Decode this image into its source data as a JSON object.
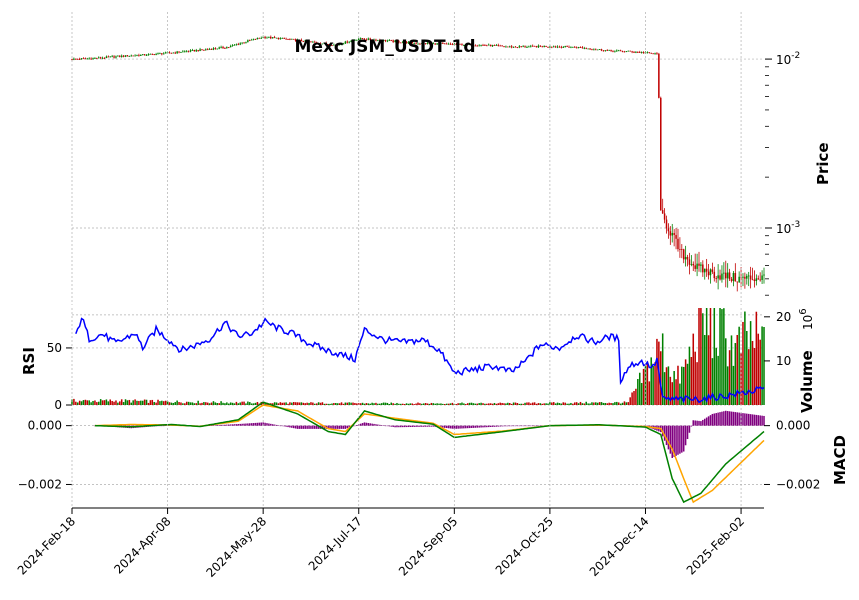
{
  "chart_data": {
    "type": "candlestick",
    "title": "Mexc JSM_USDT 1d",
    "x_ticks": [
      "2024-Feb-18",
      "2024-Apr-08",
      "2024-May-28",
      "2024-Jul-17",
      "2024-Sep-05",
      "2024-Oct-25",
      "2024-Dec-14",
      "2025-Feb-02"
    ],
    "x_range": [
      "2024-02-18",
      "2025-02-14"
    ],
    "colors": {
      "up": "#008000",
      "down": "#c00000",
      "rsi": "#0000ff",
      "macd": "#008000",
      "signal": "#ffa500",
      "hist": "#800080"
    },
    "price_panel": {
      "ylabel": "Price",
      "scale": "log",
      "ylim": [
        0.00035,
        0.019
      ],
      "major_ticks": [
        0.001,
        0.01
      ],
      "major_labels": [
        "10^-3",
        "10^-2"
      ],
      "close_series": [
        [
          "2024-02-18",
          0.00998
        ],
        [
          "2024-03-01",
          0.0101
        ],
        [
          "2024-03-15",
          0.0104
        ],
        [
          "2024-03-28",
          0.0106
        ],
        [
          "2024-04-10",
          0.0109
        ],
        [
          "2024-04-25",
          0.0113
        ],
        [
          "2024-05-10",
          0.0118
        ],
        [
          "2024-05-20",
          0.0128
        ],
        [
          "2024-05-28",
          0.0135
        ],
        [
          "2024-06-10",
          0.0131
        ],
        [
          "2024-06-25",
          0.0125
        ],
        [
          "2024-07-05",
          0.0121
        ],
        [
          "2024-07-17",
          0.0132
        ],
        [
          "2024-07-30",
          0.0129
        ],
        [
          "2024-08-15",
          0.0124
        ],
        [
          "2024-08-28",
          0.0123
        ],
        [
          "2024-09-05",
          0.0122
        ],
        [
          "2024-09-20",
          0.0121
        ],
        [
          "2024-10-05",
          0.0118
        ],
        [
          "2024-10-25",
          0.0119
        ],
        [
          "2024-11-10",
          0.0117
        ],
        [
          "2024-11-25",
          0.0112
        ],
        [
          "2024-12-05",
          0.0111
        ],
        [
          "2024-12-14",
          0.0109
        ],
        [
          "2024-12-20",
          0.0107
        ],
        [
          "2024-12-22",
          0.0012
        ],
        [
          "2024-12-26",
          0.001
        ],
        [
          "2025-01-01",
          0.00072
        ],
        [
          "2025-01-10",
          0.00058
        ],
        [
          "2025-01-20",
          0.00053
        ],
        [
          "2025-02-01",
          0.0005
        ],
        [
          "2025-02-14",
          0.00051
        ]
      ]
    },
    "volume_panel": {
      "ylabel": "Volume",
      "exponent_label": "10^6",
      "ylim": [
        0,
        22
      ],
      "ticks": [
        10,
        20
      ],
      "series": [
        [
          "2024-02-18",
          1.0
        ],
        [
          "2024-03-15",
          1.0
        ],
        [
          "2024-04-10",
          0.8
        ],
        [
          "2024-05-10",
          0.6
        ],
        [
          "2024-06-15",
          0.5
        ],
        [
          "2024-08-01",
          0.4
        ],
        [
          "2024-10-01",
          0.4
        ],
        [
          "2024-12-05",
          0.6
        ],
        [
          "2024-12-22",
          14.0
        ],
        [
          "2024-12-30",
          6.0
        ],
        [
          "2025-01-03",
          8.0
        ],
        [
          "2025-01-08",
          14.0
        ],
        [
          "2025-01-12",
          21.0
        ],
        [
          "2025-01-18",
          18.0
        ],
        [
          "2025-01-24",
          17.0
        ],
        [
          "2025-01-30",
          13.0
        ],
        [
          "2025-02-05",
          16.0
        ],
        [
          "2025-02-12",
          15.0
        ]
      ]
    },
    "rsi_panel": {
      "ylabel": "RSI",
      "ticks": [
        0,
        50
      ],
      "ylim": [
        0,
        85
      ],
      "series": [
        [
          "2024-02-20",
          60
        ],
        [
          "2024-02-23",
          77
        ],
        [
          "2024-02-27",
          58
        ],
        [
          "2024-03-05",
          62
        ],
        [
          "2024-03-12",
          54
        ],
        [
          "2024-03-22",
          63
        ],
        [
          "2024-03-26",
          50
        ],
        [
          "2024-04-02",
          66
        ],
        [
          "2024-04-08",
          58
        ],
        [
          "2024-04-15",
          48
        ],
        [
          "2024-04-22",
          52
        ],
        [
          "2024-04-30",
          58
        ],
        [
          "2024-05-08",
          72
        ],
        [
          "2024-05-15",
          60
        ],
        [
          "2024-05-22",
          63
        ],
        [
          "2024-05-29",
          73
        ],
        [
          "2024-06-05",
          67
        ],
        [
          "2024-06-12",
          63
        ],
        [
          "2024-06-20",
          55
        ],
        [
          "2024-06-30",
          48
        ],
        [
          "2024-07-10",
          43
        ],
        [
          "2024-07-15",
          40
        ],
        [
          "2024-07-20",
          66
        ],
        [
          "2024-07-30",
          57
        ],
        [
          "2024-08-10",
          55
        ],
        [
          "2024-08-20",
          57
        ],
        [
          "2024-08-28",
          48
        ],
        [
          "2024-09-05",
          28
        ],
        [
          "2024-09-15",
          31
        ],
        [
          "2024-09-25",
          34
        ],
        [
          "2024-10-05",
          29
        ],
        [
          "2024-10-12",
          38
        ],
        [
          "2024-10-20",
          53
        ],
        [
          "2024-10-30",
          50
        ],
        [
          "2024-11-08",
          61
        ],
        [
          "2024-11-18",
          55
        ],
        [
          "2024-11-25",
          60
        ],
        [
          "2024-11-30",
          58
        ],
        [
          "2024-12-01",
          22
        ],
        [
          "2024-12-06",
          35
        ],
        [
          "2024-12-12",
          38
        ],
        [
          "2024-12-18",
          33
        ],
        [
          "2024-12-20",
          40
        ],
        [
          "2024-12-23",
          5
        ],
        [
          "2025-01-10",
          5
        ],
        [
          "2025-01-25",
          8
        ],
        [
          "2025-02-14",
          14
        ]
      ]
    },
    "macd_panel": {
      "ylabel": "MACD",
      "ticks": [
        0.0,
        -0.002
      ],
      "tick_labels": [
        "0.000",
        "−0.002"
      ],
      "ylim": [
        -0.0028,
        0.0006
      ],
      "macd": [
        [
          "2024-03-01",
          0.0
        ],
        [
          "2024-03-20",
          -4e-05
        ],
        [
          "2024-04-10",
          4e-05
        ],
        [
          "2024-04-25",
          -3e-05
        ],
        [
          "2024-05-15",
          0.0002
        ],
        [
          "2024-05-28",
          0.0008
        ],
        [
          "2024-06-15",
          0.0004
        ],
        [
          "2024-07-01",
          -0.0002
        ],
        [
          "2024-07-10",
          -0.0003
        ],
        [
          "2024-07-20",
          0.0005
        ],
        [
          "2024-08-05",
          0.0002
        ],
        [
          "2024-08-25",
          5e-05
        ],
        [
          "2024-09-05",
          -0.0004
        ],
        [
          "2024-10-01",
          -0.0002
        ],
        [
          "2024-10-25",
          0.0
        ],
        [
          "2024-11-20",
          3e-05
        ],
        [
          "2024-12-14",
          -5e-05
        ],
        [
          "2024-12-22",
          -0.0003
        ],
        [
          "2024-12-28",
          -0.0018
        ],
        [
          "2025-01-03",
          -0.0026
        ],
        [
          "2025-01-12",
          -0.0023
        ],
        [
          "2025-01-25",
          -0.0013
        ],
        [
          "2025-02-14",
          -0.0002
        ]
      ],
      "signal": [
        [
          "2024-03-01",
          0.0
        ],
        [
          "2024-03-20",
          4e-05
        ],
        [
          "2024-04-10",
          2e-05
        ],
        [
          "2024-04-25",
          -2e-05
        ],
        [
          "2024-05-15",
          0.00015
        ],
        [
          "2024-05-28",
          0.0007
        ],
        [
          "2024-06-15",
          0.0005
        ],
        [
          "2024-07-01",
          -0.0001
        ],
        [
          "2024-07-10",
          -0.0002
        ],
        [
          "2024-07-20",
          0.0004
        ],
        [
          "2024-08-05",
          0.00025
        ],
        [
          "2024-08-25",
          8e-05
        ],
        [
          "2024-09-05",
          -0.0003
        ],
        [
          "2024-10-01",
          -0.00018
        ],
        [
          "2024-10-25",
          0.0
        ],
        [
          "2024-11-20",
          2e-05
        ],
        [
          "2024-12-14",
          -3e-05
        ],
        [
          "2024-12-22",
          -0.0001
        ],
        [
          "2024-12-28",
          -0.0008
        ],
        [
          "2025-01-03",
          -0.0018
        ],
        [
          "2025-01-08",
          -0.0026
        ],
        [
          "2025-01-18",
          -0.0022
        ],
        [
          "2025-02-14",
          -0.0005
        ]
      ]
    }
  }
}
